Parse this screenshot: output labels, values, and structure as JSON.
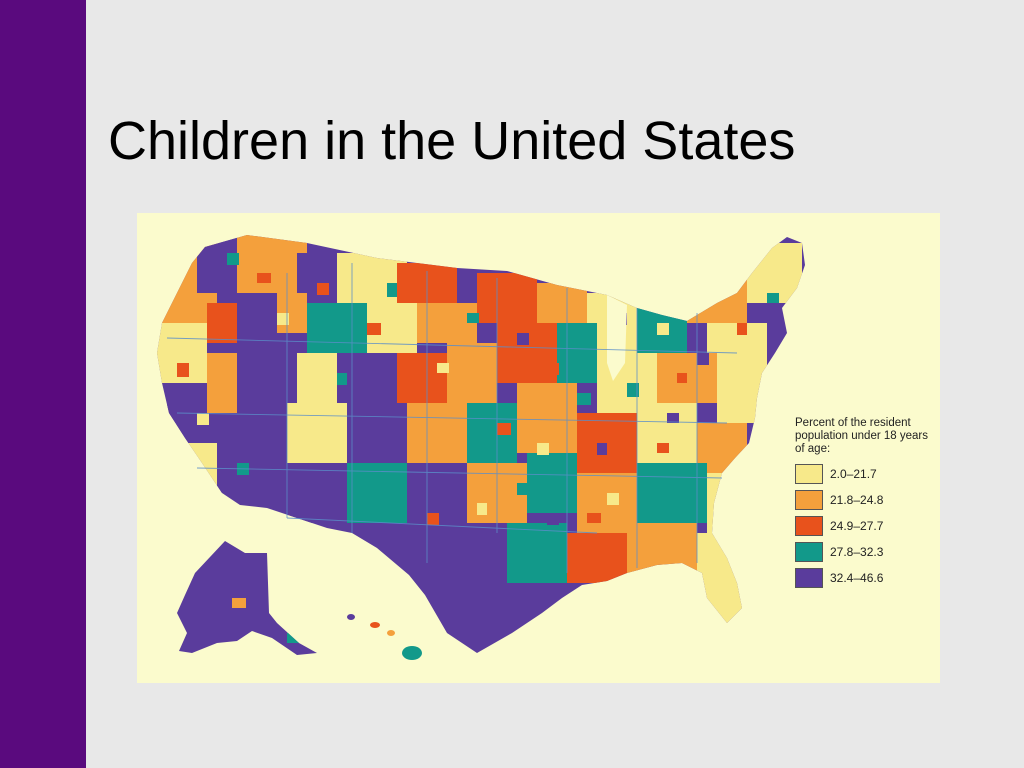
{
  "slide": {
    "title": "Children in the United States",
    "accent_bar_color": "#5a0a7e",
    "background_color": "#e8e8e8"
  },
  "map": {
    "subject": "United States counties including Alaska and Hawaii",
    "background_color": "#fbfbcd",
    "legend": {
      "title": "Percent of the resident population under 18 years of age:",
      "items": [
        {
          "label": "2.0–21.7",
          "color": "#f7e98a"
        },
        {
          "label": "21.8–24.8",
          "color": "#f4a03c"
        },
        {
          "label": "24.9–27.7",
          "color": "#e8521c"
        },
        {
          "label": "27.8–32.3",
          "color": "#12998a"
        },
        {
          "label": "32.4–46.6",
          "color": "#5a3c9c"
        }
      ]
    }
  }
}
